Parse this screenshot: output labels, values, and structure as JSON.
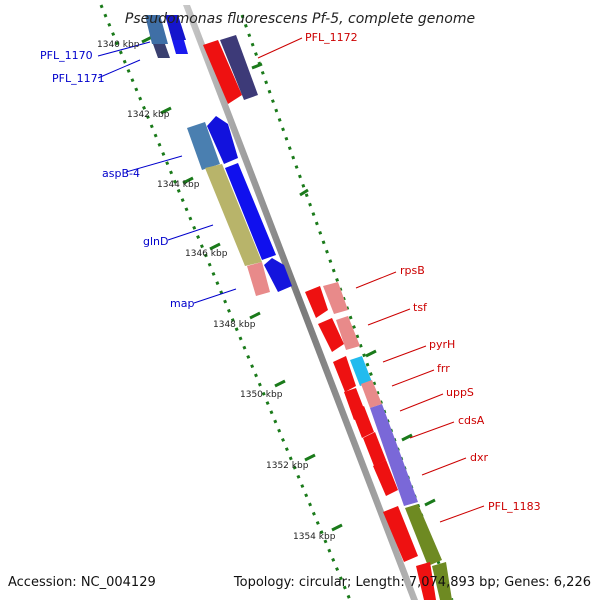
{
  "title": "Pseudomonas fluorescens Pf-5, complete genome",
  "footer": {
    "accession": "Accession: NC_004129",
    "summary": "Topology: circular; Length: 7,074,893 bp; Genes: 6,226"
  },
  "ticks": [
    "1340 kbp",
    "1342 kbp",
    "1344 kbp",
    "1346 kbp",
    "1348 kbp",
    "1350 kbp",
    "1352 kbp",
    "1354 kbp"
  ],
  "left_genes": [
    "PFL_1170",
    "PFL_1171",
    "aspB-4",
    "glnD",
    "map"
  ],
  "right_genes": [
    "PFL_1172",
    "rpsB",
    "tsf",
    "pyrH",
    "frr",
    "uppS",
    "cdsA",
    "dxr",
    "PFL_1183"
  ],
  "colors": {
    "left_label": "#0000cc",
    "right_label": "#cc0000",
    "tick": "#1a7a1a"
  }
}
